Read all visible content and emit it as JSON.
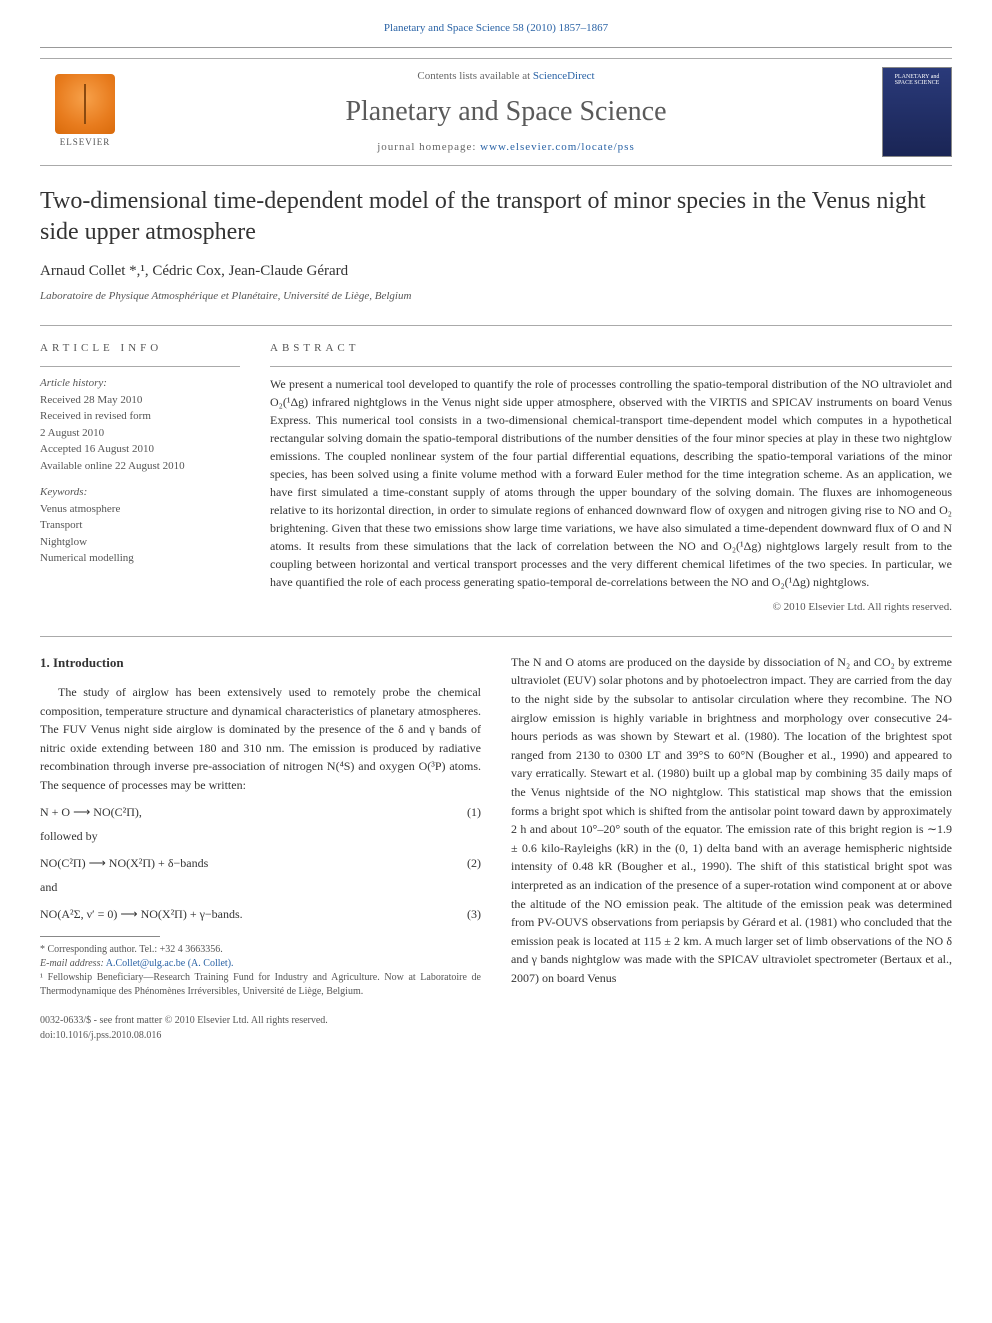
{
  "header": {
    "citation_journal": "Planetary and Space Science",
    "citation_vol": "58 (2010) 1857–1867",
    "contents_prefix": "Contents lists available at ",
    "contents_link": "ScienceDirect",
    "journal_title": "Planetary and Space Science",
    "homepage_prefix": "journal homepage: ",
    "homepage_url": "www.elsevier.com/locate/pss",
    "elsevier_label": "ELSEVIER",
    "cover_text": "PLANETARY and SPACE SCIENCE"
  },
  "article": {
    "title": "Two-dimensional time-dependent model of the transport of minor species in the Venus night side upper atmosphere",
    "authors": "Arnaud Collet *,¹, Cédric Cox, Jean-Claude Gérard",
    "affiliation": "Laboratoire de Physique Atmosphérique et Planétaire, Université de Liège, Belgium"
  },
  "info": {
    "label": "ARTICLE INFO",
    "history_head": "Article history:",
    "history": [
      "Received 28 May 2010",
      "Received in revised form",
      "2 August 2010",
      "Accepted 16 August 2010",
      "Available online 22 August 2010"
    ],
    "keywords_head": "Keywords:",
    "keywords": [
      "Venus atmosphere",
      "Transport",
      "Nightglow",
      "Numerical modelling"
    ]
  },
  "abstract": {
    "label": "ABSTRACT",
    "text": "We present a numerical tool developed to quantify the role of processes controlling the spatio-temporal distribution of the NO ultraviolet and O₂(¹Δg) infrared nightglows in the Venus night side upper atmosphere, observed with the VIRTIS and SPICAV instruments on board Venus Express. This numerical tool consists in a two-dimensional chemical-transport time-dependent model which computes in a hypothetical rectangular solving domain the spatio-temporal distributions of the number densities of the four minor species at play in these two nightglow emissions. The coupled nonlinear system of the four partial differential equations, describing the spatio-temporal variations of the minor species, has been solved using a finite volume method with a forward Euler method for the time integration scheme. As an application, we have first simulated a time-constant supply of atoms through the upper boundary of the solving domain. The fluxes are inhomogeneous relative to its horizontal direction, in order to simulate regions of enhanced downward flow of oxygen and nitrogen giving rise to NO and O₂ brightening. Given that these two emissions show large time variations, we have also simulated a time-dependent downward flux of O and N atoms. It results from these simulations that the lack of correlation between the NO and O₂(¹Δg) nightglows largely result from to the coupling between horizontal and vertical transport processes and the very different chemical lifetimes of the two species. In particular, we have quantified the role of each process generating spatio-temporal de-correlations between the NO and O₂(¹Δg) nightglows.",
    "copyright": "© 2010 Elsevier Ltd. All rights reserved."
  },
  "body": {
    "section_heading": "1. Introduction",
    "left_para1": "The study of airglow has been extensively used to remotely probe the chemical composition, temperature structure and dynamical characteristics of planetary atmospheres. The FUV Venus night side airglow is dominated by the presence of the δ and γ bands of nitric oxide extending between 180 and 310 nm. The emission is produced by radiative recombination through inverse pre-association of nitrogen N(⁴S) and oxygen O(³P) atoms. The sequence of processes may be written:",
    "eq1": "N + O ⟶ NO(C²Π),",
    "eq1_num": "(1)",
    "eq_followed": "followed by",
    "eq2": "NO(C²Π) ⟶ NO(X²Π) + δ−bands",
    "eq2_num": "(2)",
    "eq_and": "and",
    "eq3": "NO(A²Σ, ν′ = 0) ⟶ NO(X²Π) + γ−bands.",
    "eq3_num": "(3)",
    "right_para": "The N and O atoms are produced on the dayside by dissociation of N₂ and CO₂ by extreme ultraviolet (EUV) solar photons and by photoelectron impact. They are carried from the day to the night side by the subsolar to antisolar circulation where they recombine. The NO airglow emission is highly variable in brightness and morphology over consecutive 24-hours periods as was shown by Stewart et al. (1980). The location of the brightest spot ranged from 2130 to 0300 LT and 39°S to 60°N (Bougher et al., 1990) and appeared to vary erratically. Stewart et al. (1980) built up a global map by combining 35 daily maps of the Venus nightside of the NO nightglow. This statistical map shows that the emission forms a bright spot which is shifted from the antisolar point toward dawn by approximately 2 h and about 10°–20° south of the equator. The emission rate of this bright region is ∼1.9 ± 0.6 kilo-Rayleighs (kR) in the (0, 1) delta band with an average hemispheric nightside intensity of 0.48 kR (Bougher et al., 1990). The shift of this statistical bright spot was interpreted as an indication of the presence of a super-rotation wind component at or above the altitude of the NO emission peak. The altitude of the emission peak was determined from PV-OUVS observations from periapsis by Gérard et al. (1981) who concluded that the emission peak is located at 115 ± 2 km. A much larger set of limb observations of the NO δ and γ bands nightglow was made with the SPICAV ultraviolet spectrometer (Bertaux et al., 2007) on board Venus",
    "ref_stewart": "Stewart et al. (1980)",
    "ref_bougher": "Bougher et al., 1990",
    "ref_gerard": "Gérard et al. (1981)",
    "ref_bertaux": "Bertaux et al., 2007"
  },
  "footnotes": {
    "corr_label": "* Corresponding author. Tel.: +32 4 3663356.",
    "email_label": "E-mail address:",
    "email": "A.Collet@ulg.ac.be (A. Collet).",
    "note1": "¹ Fellowship Beneficiary—Research Training Fund for Industry and Agriculture. Now at Laboratoire de Thermodynamique des Phénomènes Irréversibles, Université de Liège, Belgium."
  },
  "bottom": {
    "issn": "0032-0633/$ - see front matter © 2010 Elsevier Ltd. All rights reserved.",
    "doi": "doi:10.1016/j.pss.2010.08.016"
  },
  "colors": {
    "link": "#2962a5",
    "text": "#333333",
    "muted": "#555555",
    "rule": "#aaaaaa",
    "elsevier_orange": "#e87c1e",
    "cover_blue": "#1a2555"
  },
  "typography": {
    "body_pt": 12,
    "title_pt": 24,
    "journal_title_pt": 28,
    "small_pt": 11,
    "footnote_pt": 10
  }
}
